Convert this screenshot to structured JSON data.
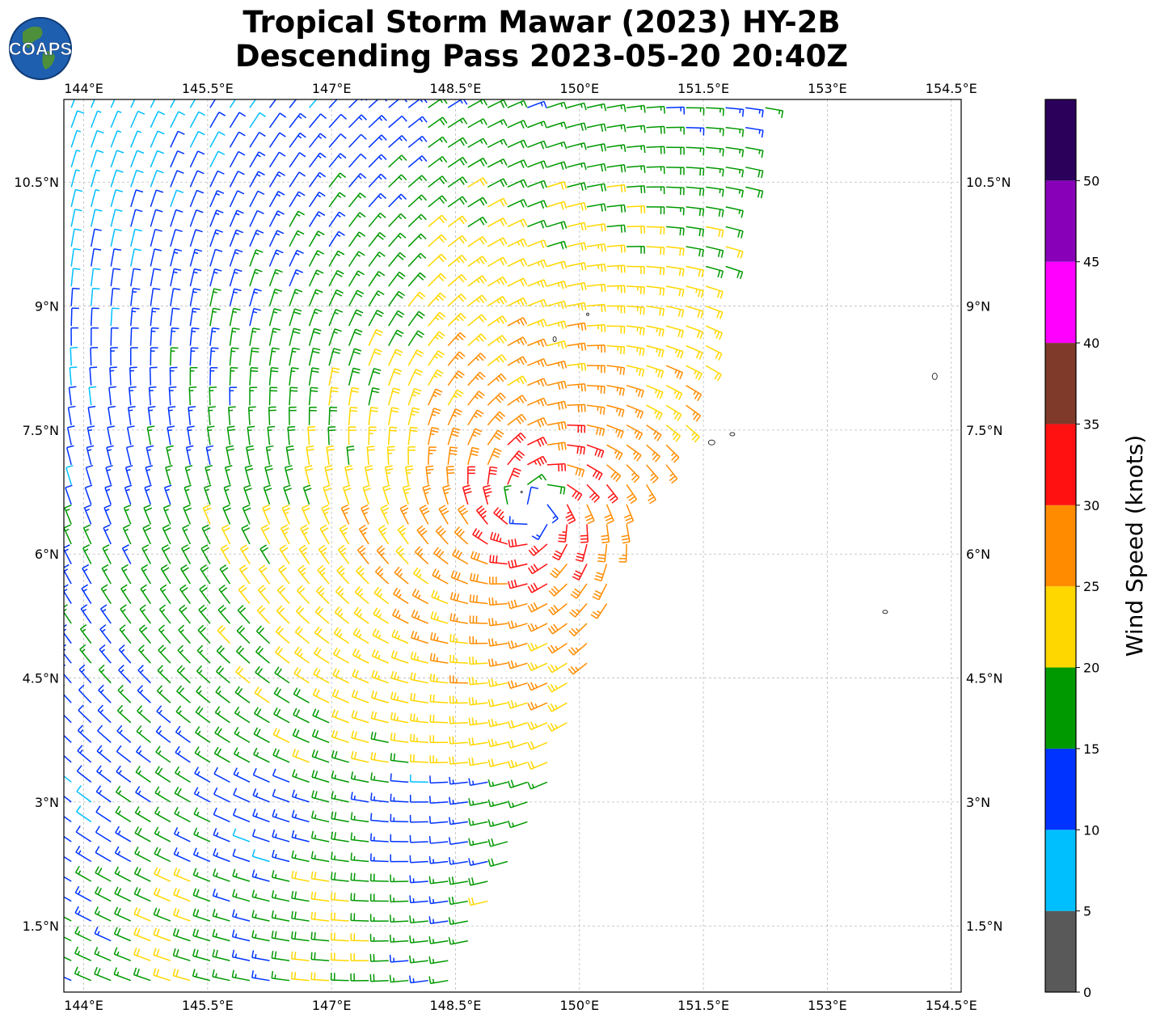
{
  "logo": {
    "text": "COAPS"
  },
  "chart_data": {
    "type": "wind-barb-map",
    "title": "Tropical Storm Mawar (2023) HY-2B",
    "subtitle": "Descending Pass 2023-05-20 20:40Z",
    "x_ticks": [
      "144°E",
      "145.5°E",
      "147°E",
      "148.5°E",
      "150°E",
      "151.5°E",
      "153°E",
      "154.5°E"
    ],
    "x_tick_values": [
      144,
      145.5,
      147,
      148.5,
      150,
      151.5,
      153,
      154.5
    ],
    "y_ticks": [
      "1.5°N",
      "3°N",
      "4.5°N",
      "6°N",
      "7.5°N",
      "9°N",
      "10.5°N"
    ],
    "y_tick_values": [
      1.5,
      3,
      4.5,
      6,
      7.5,
      9,
      10.5
    ],
    "xlim": [
      143.76,
      154.62
    ],
    "ylim": [
      0.7,
      11.5
    ],
    "storm_center": {
      "lon": 149.45,
      "lat": 6.55
    },
    "swath_east_edge": [
      [
        152.3,
        11.5
      ],
      [
        152.1,
        10.5
      ],
      [
        151.8,
        9.5
      ],
      [
        151.6,
        8.5
      ],
      [
        151.3,
        7.5
      ],
      [
        150.9,
        6.8
      ],
      [
        150.6,
        6.2
      ],
      [
        150.4,
        5.6
      ],
      [
        150.2,
        5.0
      ],
      [
        150.0,
        4.2
      ],
      [
        149.7,
        3.4
      ],
      [
        149.4,
        2.6
      ],
      [
        149.0,
        1.8
      ],
      [
        148.6,
        1.0
      ],
      [
        148.4,
        0.7
      ]
    ],
    "colorbar": {
      "label": "Wind Speed (knots)",
      "ticks": [
        "0",
        "5",
        "10",
        "15",
        "20",
        "25",
        "30",
        "35",
        "40",
        "45",
        "50"
      ],
      "bounds": [
        0,
        5,
        10,
        15,
        20,
        25,
        30,
        35,
        40,
        45,
        50,
        55
      ],
      "colors": [
        "#595959",
        "#00bfff",
        "#0033ff",
        "#009900",
        "#ffd700",
        "#ff8c00",
        "#ff1111",
        "#7f3a2a",
        "#ff00ff",
        "#8800b8",
        "#2a005a"
      ]
    }
  }
}
